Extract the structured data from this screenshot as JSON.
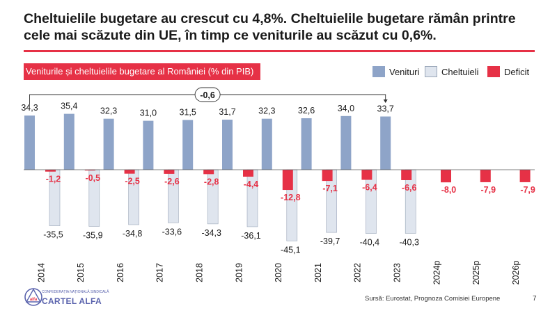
{
  "headline": "Cheltuielile bugetare au crescut cu 4,8%. Cheltuielile bugetare rămân printre cele mai scăzute din UE, în timp ce veniturile au scăzut cu 0,6%.",
  "subtitle": "Veniturile și cheltuielile bugetare al României (% din PIB)",
  "footer": {
    "source": "Sursă: Eurostat, Prognoza Comisiei Europene",
    "page": "7",
    "logo_text": "CARTEL ALFA",
    "logo_small_text": "CONFEDERAȚIA NAȚIONALĂ SINDICALĂ",
    "logo_mark": "alfa"
  },
  "colors": {
    "venituri": "#8ea4c8",
    "cheltuieli": "#dfe5ee",
    "deficit": "#e63146",
    "accent": "#e63146",
    "logo": "#5a63ad"
  },
  "chart_data": {
    "type": "bar",
    "categories": [
      "2014",
      "2015",
      "2016",
      "2017",
      "2018",
      "2019",
      "2020",
      "2021",
      "2022",
      "2023",
      "2024p",
      "2025p",
      "2026p"
    ],
    "series": [
      {
        "name": "Venituri",
        "values": [
          34.3,
          35.4,
          32.3,
          31.0,
          31.5,
          31.7,
          32.3,
          32.6,
          34.0,
          33.7,
          null,
          null,
          null
        ]
      },
      {
        "name": "Cheltuieli",
        "values": [
          -35.5,
          -35.9,
          -34.8,
          -33.6,
          -34.3,
          -36.1,
          -45.1,
          -39.7,
          -40.4,
          -40.3,
          null,
          null,
          null
        ]
      },
      {
        "name": "Deficit",
        "values": [
          -1.2,
          -0.5,
          -2.5,
          -2.6,
          -2.8,
          -4.4,
          -12.8,
          -7.1,
          -6.4,
          -6.6,
          -8.0,
          -7.9,
          -7.9
        ]
      }
    ],
    "labels": {
      "Venituri": [
        "34,3",
        "35,4",
        "32,3",
        "31,0",
        "31,5",
        "31,7",
        "32,3",
        "32,6",
        "34,0",
        "33,7"
      ],
      "Cheltuieli": [
        "-35,5",
        "-35,9",
        "-34,8",
        "-33,6",
        "-34,3",
        "-36,1",
        "-45,1",
        "-39,7",
        "-40,4",
        "-40,3"
      ],
      "Deficit": [
        "-1,2",
        "-0,5",
        "-2,5",
        "-2,6",
        "-2,8",
        "-4,4",
        "-12,8",
        "-7,1",
        "-6,4",
        "-6,6",
        "-8,0",
        "-7,9",
        "-7,9"
      ]
    },
    "annotation": {
      "text": "-0,6",
      "from": "2014",
      "to": "2023"
    },
    "legend_position": "top-right",
    "grid": false
  }
}
